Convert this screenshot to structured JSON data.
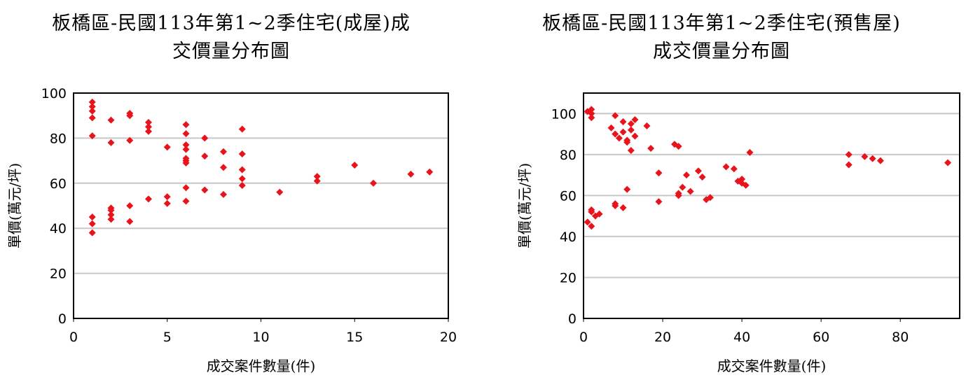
{
  "colors": {
    "marker": "#e8141c",
    "grid": "#c8c8c8",
    "frame": "#000000"
  },
  "chart_data": [
    {
      "type": "scatter",
      "title": "板橋區-民國113年第1~2季住宅(成屋)成\n交價量分布圖",
      "xlabel": "成交案件數量(件)",
      "ylabel": "單價(萬元/坪)",
      "xlim": [
        0,
        20
      ],
      "ylim": [
        0,
        100
      ],
      "xticks": [
        "0",
        "5",
        "10",
        "15",
        "20"
      ],
      "yticks": [
        "0",
        "20",
        "40",
        "60",
        "80",
        "100"
      ],
      "grid": "horizontal",
      "marker": "diamond",
      "points": [
        [
          1,
          96
        ],
        [
          1,
          94
        ],
        [
          1,
          92
        ],
        [
          1,
          89
        ],
        [
          1,
          81
        ],
        [
          1,
          45
        ],
        [
          1,
          42
        ],
        [
          1,
          38
        ],
        [
          2,
          88
        ],
        [
          2,
          78
        ],
        [
          2,
          49
        ],
        [
          2,
          48
        ],
        [
          2,
          46
        ],
        [
          2,
          44
        ],
        [
          3,
          91
        ],
        [
          3,
          90
        ],
        [
          3,
          79
        ],
        [
          3,
          50
        ],
        [
          3,
          43
        ],
        [
          4,
          87
        ],
        [
          4,
          85
        ],
        [
          4,
          83
        ],
        [
          4,
          53
        ],
        [
          5,
          76
        ],
        [
          5,
          54
        ],
        [
          5,
          51
        ],
        [
          6,
          86
        ],
        [
          6,
          82
        ],
        [
          6,
          77
        ],
        [
          6,
          75
        ],
        [
          6,
          71
        ],
        [
          6,
          70
        ],
        [
          6,
          69
        ],
        [
          6,
          58
        ],
        [
          6,
          52
        ],
        [
          7,
          80
        ],
        [
          7,
          72
        ],
        [
          7,
          57
        ],
        [
          8,
          74
        ],
        [
          8,
          67
        ],
        [
          8,
          55
        ],
        [
          9,
          84
        ],
        [
          9,
          73
        ],
        [
          9,
          66
        ],
        [
          9,
          62
        ],
        [
          9,
          59
        ],
        [
          11,
          56
        ],
        [
          13,
          63
        ],
        [
          13,
          61
        ],
        [
          15,
          68
        ],
        [
          16,
          60
        ],
        [
          18,
          64
        ],
        [
          19,
          65
        ]
      ]
    },
    {
      "type": "scatter",
      "title": "板橋區-民國113年第1~2季住宅(預售屋)\n成交價量分布圖",
      "xlabel": "成交案件數量(件)",
      "ylabel": "單價(萬元/坪)",
      "xlim": [
        0,
        95
      ],
      "ylim": [
        0,
        110
      ],
      "xticks": [
        "0",
        "20",
        "40",
        "60",
        "80"
      ],
      "yticks": [
        "0",
        "20",
        "40",
        "60",
        "80",
        "100"
      ],
      "grid": "horizontal",
      "marker": "diamond",
      "points": [
        [
          1,
          101
        ],
        [
          2,
          102
        ],
        [
          2,
          100
        ],
        [
          2,
          98
        ],
        [
          1,
          47
        ],
        [
          2,
          45
        ],
        [
          2,
          52
        ],
        [
          2,
          53
        ],
        [
          3,
          50
        ],
        [
          4,
          51
        ],
        [
          7,
          93
        ],
        [
          8,
          99
        ],
        [
          8,
          90
        ],
        [
          9,
          88
        ],
        [
          10,
          96
        ],
        [
          10,
          91
        ],
        [
          11,
          87
        ],
        [
          11,
          86
        ],
        [
          12,
          95
        ],
        [
          12,
          92
        ],
        [
          12,
          82
        ],
        [
          13,
          97
        ],
        [
          13,
          89
        ],
        [
          8,
          56
        ],
        [
          8,
          55
        ],
        [
          10,
          54
        ],
        [
          11,
          63
        ],
        [
          16,
          94
        ],
        [
          17,
          83
        ],
        [
          19,
          71
        ],
        [
          19,
          57
        ],
        [
          23,
          85
        ],
        [
          24,
          84
        ],
        [
          24,
          61
        ],
        [
          24,
          60
        ],
        [
          25,
          64
        ],
        [
          26,
          70
        ],
        [
          27,
          62
        ],
        [
          29,
          72
        ],
        [
          30,
          69
        ],
        [
          31,
          58
        ],
        [
          32,
          59
        ],
        [
          36,
          74
        ],
        [
          38,
          73
        ],
        [
          39,
          67
        ],
        [
          40,
          68
        ],
        [
          40,
          66
        ],
        [
          41,
          65
        ],
        [
          42,
          81
        ],
        [
          67,
          80
        ],
        [
          67,
          75
        ],
        [
          71,
          79
        ],
        [
          73,
          78
        ],
        [
          75,
          77
        ],
        [
          92,
          76
        ]
      ]
    }
  ]
}
